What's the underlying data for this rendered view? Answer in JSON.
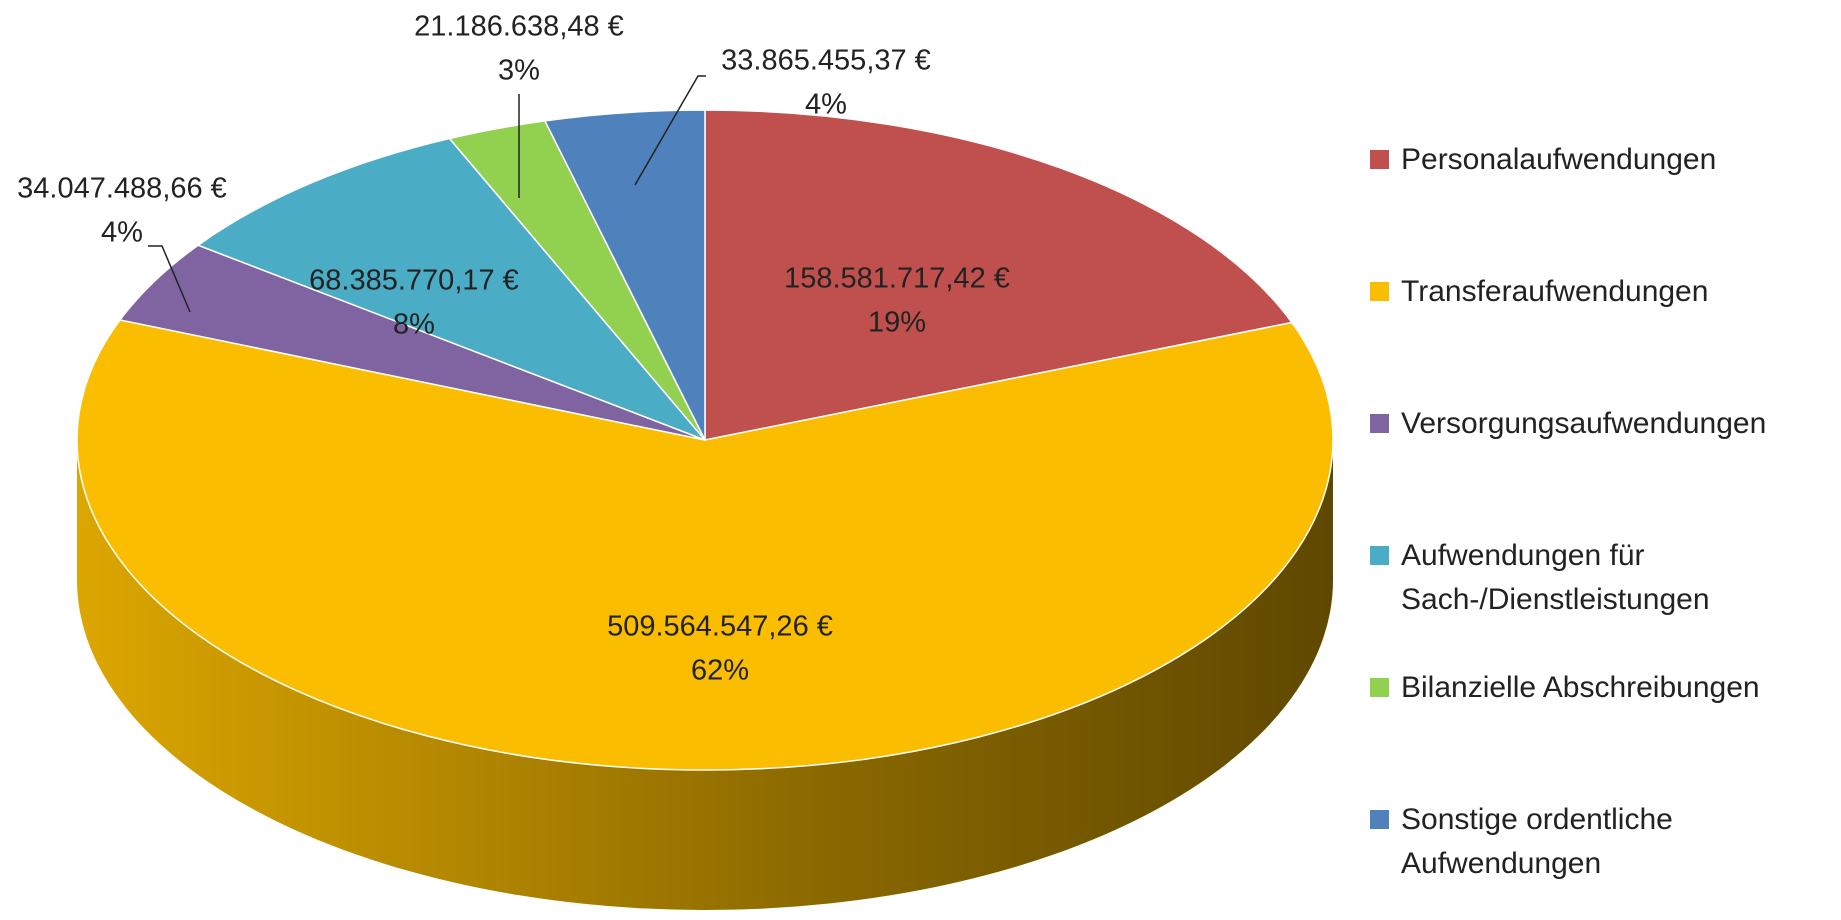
{
  "chart_data": {
    "type": "pie3d",
    "categories": [
      "Personalaufwendungen",
      "Transferaufwendungen",
      "Versorgungsaufwendungen",
      "Aufwendungen für Sach-/Dienstleistungen",
      "Bilanzielle Abschreibungen",
      "Sonstige ordentliche Aufwendungen"
    ],
    "values": [
      158581717.42,
      509564547.26,
      34047488.66,
      68385770.17,
      21186638.48,
      33865455.37
    ],
    "value_labels": [
      "158.581.717,42 €",
      "509.564.547,26 €",
      "34.047.488,66 €",
      "68.385.770,17 €",
      "21.186.638,48 €",
      "33.865.455,37 €"
    ],
    "percentages": [
      19,
      62,
      4,
      8,
      3,
      4
    ],
    "percentage_labels": [
      "19%",
      "62%",
      "4%",
      "8%",
      "3%",
      "4%"
    ],
    "colors": [
      "#c0504d",
      "#fabd00",
      "#8064a2",
      "#4bacc6",
      "#92d050",
      "#4f81bd"
    ],
    "legend": "right"
  }
}
